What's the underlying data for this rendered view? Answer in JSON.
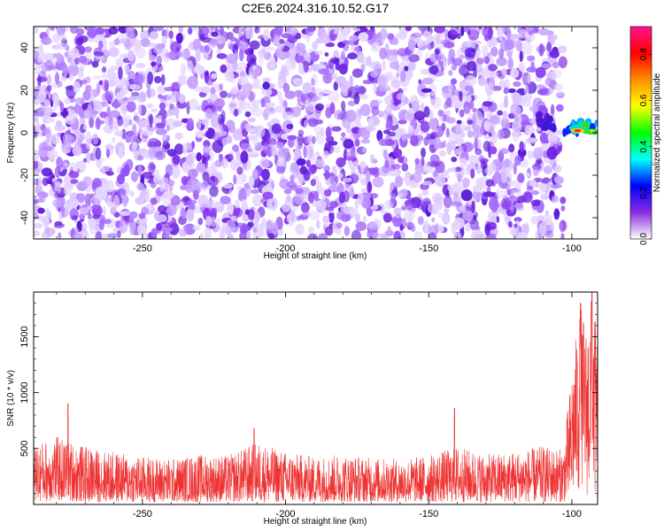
{
  "chart_data": [
    {
      "type": "heatmap",
      "title": "C2E6.2024.316.10.52.G17",
      "xlabel": "Height of straight line (km)",
      "ylabel": "Frequency (Hz)",
      "xlim": [
        -288,
        -91
      ],
      "ylim": [
        -50,
        50
      ],
      "x_ticks": [
        -250,
        -200,
        -150,
        -100
      ],
      "y_ticks": [
        -40,
        -20,
        0,
        20,
        40
      ],
      "data_extent_x": [
        -288,
        -103
      ],
      "signal_region": {
        "x": [
          -113,
          -91
        ],
        "frequency": [
          0,
          8
        ],
        "peak_x": -98,
        "peak_frequency": 1,
        "peak_amplitude": 0.9
      },
      "colorbar": {
        "label": "Normalized spectral amplitude",
        "range": [
          0.0,
          0.92
        ],
        "ticks": [
          0.0,
          0.2,
          0.4,
          0.6,
          0.8
        ],
        "colormap": "rainbow",
        "colors": [
          "#ffffff",
          "#8a2be2",
          "#0000ff",
          "#00ffff",
          "#00ff00",
          "#ffff00",
          "#ff8c00",
          "#ff0000",
          "#ff1493"
        ]
      },
      "grid": false
    },
    {
      "type": "line",
      "title": "",
      "xlabel": "Height of straight line (km)",
      "ylabel": "SNR (10 * v/v)",
      "xlim": [
        -288,
        -91
      ],
      "ylim": [
        0,
        1900
      ],
      "x_ticks": [
        -250,
        -200,
        -150,
        -100
      ],
      "y_ticks": [
        500,
        1000,
        1500
      ],
      "series_color": "#ee3333",
      "baseline_range": [
        50,
        420
      ],
      "envelope": {
        "x": [
          -288,
          -280,
          -270,
          -260,
          -250,
          -240,
          -230,
          -220,
          -210,
          -200,
          -190,
          -180,
          -170,
          -160,
          -150,
          -140,
          -130,
          -120,
          -110,
          -103,
          -100,
          -97,
          -95,
          -93,
          -91
        ],
        "max": [
          540,
          610,
          520,
          470,
          430,
          410,
          450,
          440,
          560,
          470,
          430,
          450,
          420,
          410,
          440,
          520,
          450,
          480,
          520,
          500,
          1200,
          1800,
          1600,
          1900,
          1500
        ],
        "min": [
          20,
          30,
          20,
          20,
          20,
          20,
          20,
          20,
          20,
          20,
          20,
          20,
          20,
          20,
          20,
          20,
          20,
          20,
          20,
          20,
          40,
          60,
          50,
          40,
          30
        ]
      },
      "peaks": [
        {
          "x": -276,
          "y": 900
        },
        {
          "x": -211,
          "y": 680
        },
        {
          "x": -141,
          "y": 860
        },
        {
          "x": -97,
          "y": 1800
        },
        {
          "x": -93,
          "y": 1900
        }
      ],
      "grid": false
    }
  ]
}
